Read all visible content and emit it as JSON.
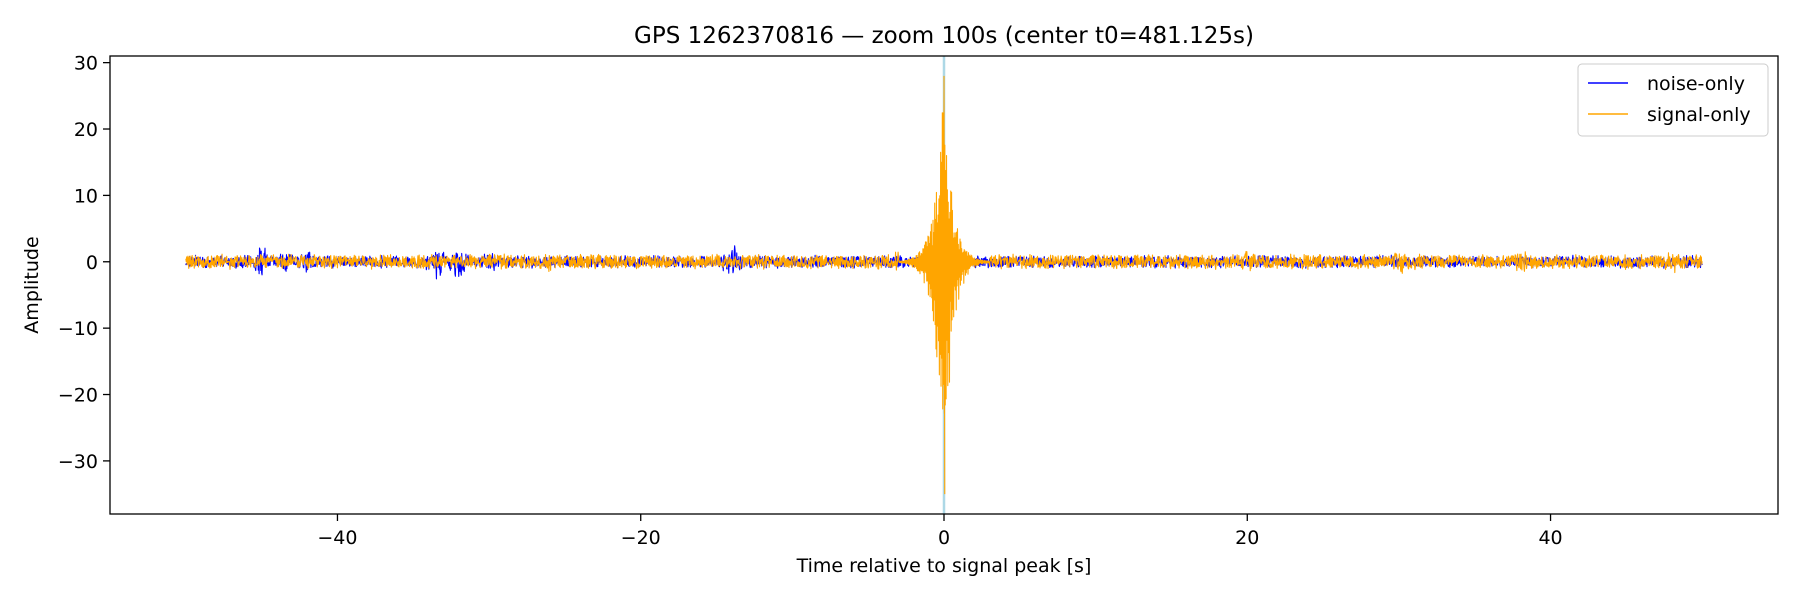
{
  "chart_data": {
    "type": "line",
    "title": "GPS 1262370816 — zoom 100s (center t0=481.125s)",
    "xlabel": "Time relative to signal peak [s]",
    "ylabel": "Amplitude",
    "xlim": [
      -55,
      55
    ],
    "ylim": [
      -38,
      31
    ],
    "xticks": [
      -40,
      -20,
      0,
      20,
      40
    ],
    "yticks": [
      -30,
      -20,
      -10,
      0,
      10,
      20,
      30
    ],
    "grid": false,
    "legend_position": "top-right",
    "vline": {
      "x": 0,
      "color": "#add8e6"
    },
    "series": [
      {
        "name": "noise-only",
        "color": "#0000ff",
        "x_range": [
          -50,
          50
        ],
        "typical_amplitude": 1.0,
        "bursts": [
          {
            "t": -45,
            "amp": 2.5
          },
          {
            "t": -43.5,
            "amp": 2.0
          },
          {
            "t": -42,
            "amp": 2.0
          },
          {
            "t": -33.5,
            "amp": 3.0
          },
          {
            "t": -32,
            "amp": 2.8
          },
          {
            "t": -30,
            "amp": 1.8
          },
          {
            "t": -14,
            "amp": 3.0
          },
          {
            "t": 0,
            "amp": 2.0
          }
        ]
      },
      {
        "name": "signal-only",
        "color": "#ffa500",
        "x_range": [
          -50,
          50
        ],
        "typical_amplitude": 1.2,
        "peak_t": 0,
        "peak_max": 28,
        "peak_min": -35,
        "bursts": [
          {
            "t": -29,
            "amp": 1.6
          },
          {
            "t": -26,
            "amp": 1.6
          },
          {
            "t": -3,
            "amp": 1.8
          },
          {
            "t": 20,
            "amp": 1.8
          },
          {
            "t": 30,
            "amp": 2.0
          },
          {
            "t": 38,
            "amp": 2.0
          },
          {
            "t": 48,
            "amp": 1.8
          }
        ]
      }
    ]
  }
}
